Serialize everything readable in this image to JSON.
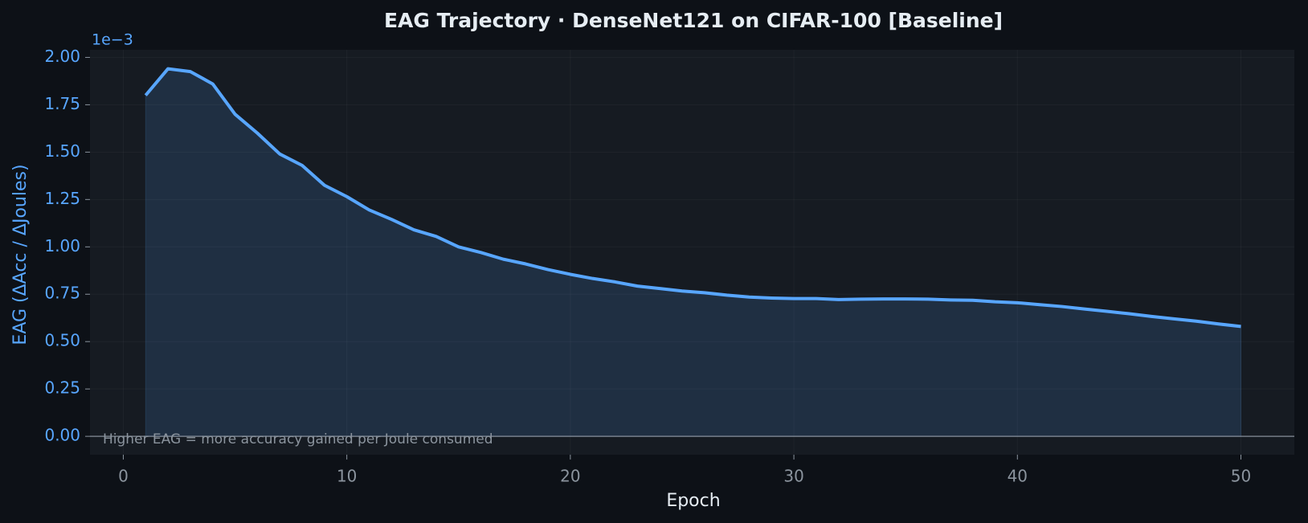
{
  "chart_data": {
    "type": "line",
    "title": "EAG Trajectory  ·  DenseNet121 on CIFAR-100  [Baseline]",
    "x_label": "Epoch",
    "y_label": "EAG  (ΔAcc / ΔJoules)",
    "y_offset_label": "1e−3",
    "annotation": "Higher EAG = more accuracy gained per Joule consumed",
    "x": [
      1,
      2,
      3,
      4,
      5,
      6,
      7,
      8,
      9,
      10,
      11,
      12,
      13,
      14,
      15,
      16,
      17,
      18,
      19,
      20,
      21,
      22,
      23,
      24,
      25,
      26,
      27,
      28,
      29,
      30,
      31,
      32,
      33,
      34,
      35,
      36,
      37,
      38,
      39,
      40,
      41,
      42,
      43,
      44,
      45,
      46,
      47,
      48,
      49,
      50
    ],
    "series": [
      {
        "color": "#58a6ff",
        "values": [
          1.8,
          1.94,
          1.925,
          1.86,
          1.7,
          1.6,
          1.49,
          1.43,
          1.325,
          1.265,
          1.195,
          1.145,
          1.09,
          1.055,
          1.0,
          0.97,
          0.935,
          0.91,
          0.88,
          0.855,
          0.833,
          0.815,
          0.793,
          0.78,
          0.767,
          0.758,
          0.745,
          0.735,
          0.73,
          0.727,
          0.727,
          0.722,
          0.724,
          0.725,
          0.725,
          0.724,
          0.72,
          0.718,
          0.71,
          0.705,
          0.695,
          0.685,
          0.672,
          0.66,
          0.647,
          0.633,
          0.62,
          0.608,
          0.593,
          0.58
        ]
      }
    ],
    "xlim": [
      -1.49,
      52.39
    ],
    "ylim": [
      -0.097,
      2.04
    ],
    "xticks": [
      0,
      10,
      20,
      30,
      40,
      50
    ],
    "yticks": [
      {
        "value": 0,
        "label": "0.00"
      },
      0.25,
      {
        "value": 0.5,
        "label": "0.50"
      },
      0.75,
      {
        "value": 1,
        "label": "1.00"
      },
      1.25,
      {
        "value": 1.5,
        "label": "1.50"
      },
      1.75,
      {
        "value": 2,
        "label": "2.00"
      }
    ],
    "hline": 0,
    "grid": true
  }
}
